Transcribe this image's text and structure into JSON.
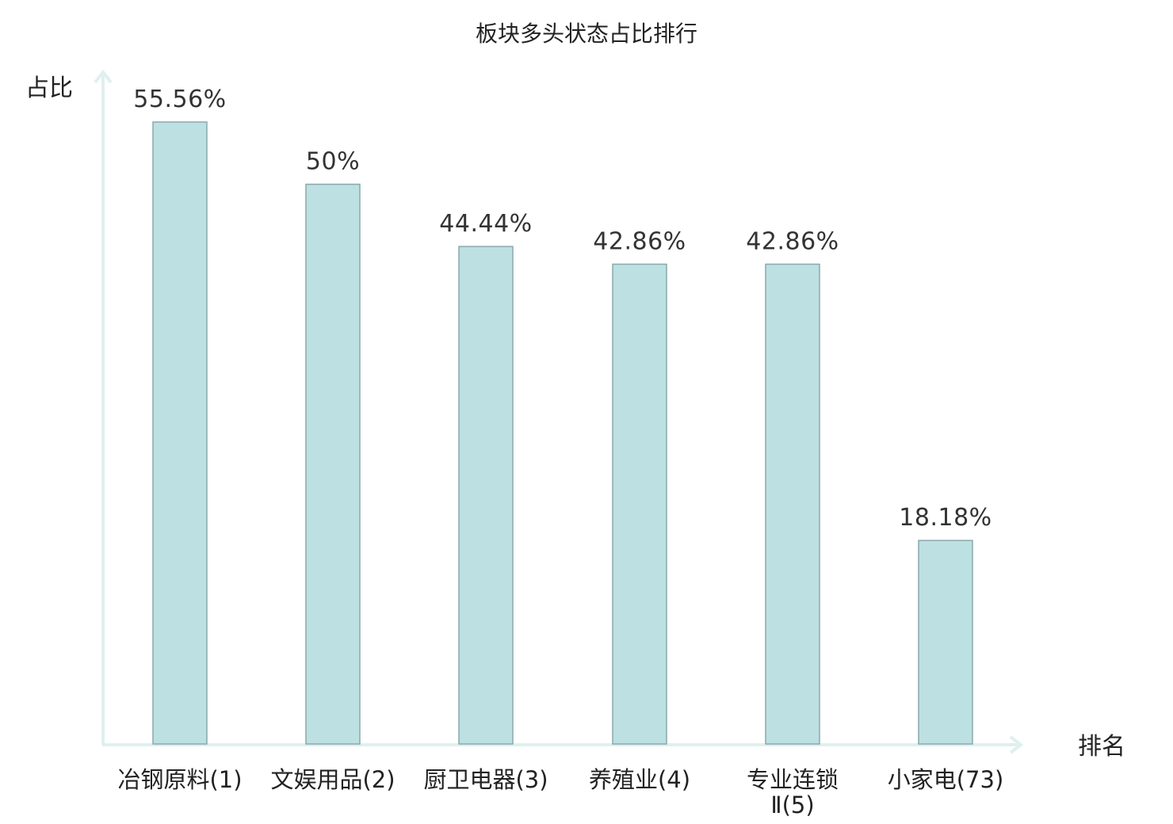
{
  "chart_data": {
    "type": "bar",
    "title": "板块多头状态占比排行",
    "ylabel": "占比",
    "xlabel": "排名",
    "ylim": [
      0,
      60
    ],
    "grid": false,
    "categories": [
      "冶钢原料(1)",
      "文娱用品(2)",
      "厨卫电器(3)",
      "养殖业(4)",
      "专业连锁Ⅱ(5)",
      "小家电(73)"
    ],
    "category_lines": [
      [
        "冶钢原料(1)"
      ],
      [
        "文娱用品(2)"
      ],
      [
        "厨卫电器(3)"
      ],
      [
        "养殖业(4)"
      ],
      [
        "专业连锁",
        "Ⅱ(5)"
      ],
      [
        "小家电(73)"
      ]
    ],
    "values": [
      55.56,
      50,
      44.44,
      42.86,
      42.86,
      18.18
    ],
    "value_labels": [
      "55.56%",
      "50%",
      "44.44%",
      "42.86%",
      "42.86%",
      "18.18%"
    ],
    "highlight_index": 5
  },
  "colors": {
    "bar_fill": "#bde0e3",
    "bar_stroke": "#8aa8ab",
    "axis": "#dff0ee",
    "text": "#222222",
    "highlight": "#e8201c"
  }
}
